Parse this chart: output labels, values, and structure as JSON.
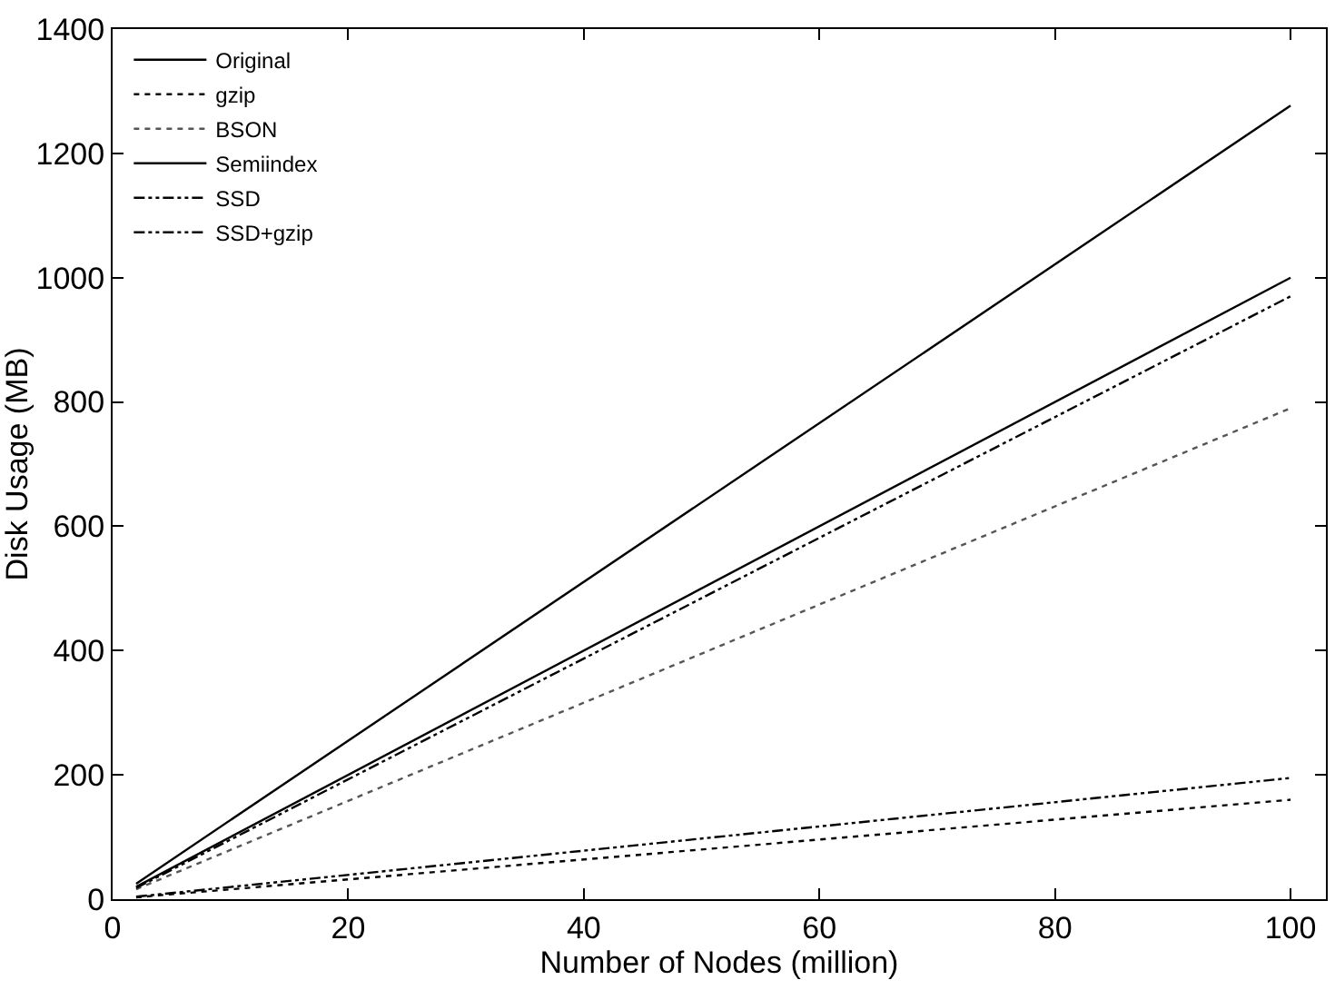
{
  "chart_data": {
    "type": "line",
    "xlabel": "Number of Nodes (million)",
    "ylabel": "Disk Usage (MB)",
    "x": [
      2,
      100
    ],
    "xlim": [
      0,
      103
    ],
    "xticks": [
      0,
      20,
      40,
      60,
      80,
      100
    ],
    "ylim": [
      0,
      1400
    ],
    "yticks": [
      0,
      200,
      400,
      600,
      800,
      1000,
      1200,
      1400
    ],
    "legend": "top left",
    "marker": "none",
    "series": [
      {
        "name": "Original",
        "color": "#000000",
        "line_style": "solid",
        "values": [
          25,
          1277
        ]
      },
      {
        "name": "gzip",
        "color": "#000000",
        "line_style": "dotted",
        "values": [
          3,
          160
        ]
      },
      {
        "name": "BSON",
        "color": "#555555",
        "line_style": "dotted",
        "values": [
          16,
          790
        ]
      },
      {
        "name": "Semiindex",
        "color": "#000000",
        "line_style": "solid",
        "values": [
          20,
          1000
        ]
      },
      {
        "name": "SSD",
        "color": "#000000",
        "line_style": "dashed",
        "values": [
          18,
          970
        ]
      },
      {
        "name": "SSD+gzip",
        "color": "#000000",
        "line_style": "dashed",
        "values": [
          4,
          195
        ]
      }
    ]
  }
}
